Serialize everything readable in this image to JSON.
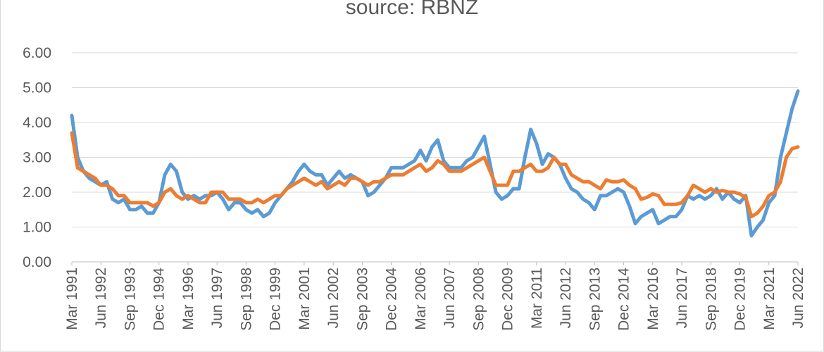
{
  "chart_data": {
    "type": "line",
    "title": "source: RBNZ",
    "xlabel": "",
    "ylabel": "",
    "ylim": [
      0,
      6
    ],
    "y_ticks": [
      "0.00",
      "1.00",
      "2.00",
      "3.00",
      "4.00",
      "5.00",
      "6.00"
    ],
    "grid": true,
    "legend": "none",
    "x_tick_labels": [
      "Mar 1991",
      "Jun 1992",
      "Sep 1993",
      "Dec 1994",
      "Mar 1996",
      "Jun 1997",
      "Sep 1998",
      "Dec 1999",
      "Mar 2001",
      "Jun 2002",
      "Sep 2003",
      "Dec 2004",
      "Mar 2006",
      "Jun 2007",
      "Sep 2008",
      "Dec 2009",
      "Mar 2011",
      "Jun 2012",
      "Sep 2013",
      "Dec 2014",
      "Mar 2016",
      "Jun 2017",
      "Sep 2018",
      "Dec 2019",
      "Mar 2021",
      "Jun 2022"
    ],
    "n_points": 126,
    "series": [
      {
        "color": "#5b9bd5",
        "keypoints": [
          [
            0,
            4.2
          ],
          [
            1,
            3.0
          ],
          [
            2,
            2.6
          ],
          [
            3,
            2.4
          ],
          [
            4,
            2.3
          ],
          [
            5,
            2.2
          ],
          [
            6,
            2.3
          ],
          [
            7,
            1.8
          ],
          [
            8,
            1.7
          ],
          [
            9,
            1.8
          ],
          [
            10,
            1.5
          ],
          [
            11,
            1.5
          ],
          [
            12,
            1.6
          ],
          [
            13,
            1.4
          ],
          [
            14,
            1.4
          ],
          [
            15,
            1.7
          ],
          [
            16,
            2.5
          ],
          [
            17,
            2.8
          ],
          [
            18,
            2.6
          ],
          [
            19,
            2.0
          ],
          [
            20,
            1.8
          ],
          [
            21,
            1.9
          ],
          [
            22,
            1.8
          ],
          [
            23,
            1.9
          ],
          [
            24,
            1.9
          ],
          [
            25,
            2.0
          ],
          [
            26,
            1.8
          ],
          [
            27,
            1.5
          ],
          [
            28,
            1.7
          ],
          [
            29,
            1.7
          ],
          [
            30,
            1.5
          ],
          [
            31,
            1.4
          ],
          [
            32,
            1.5
          ],
          [
            33,
            1.3
          ],
          [
            34,
            1.4
          ],
          [
            35,
            1.7
          ],
          [
            36,
            1.9
          ],
          [
            37,
            2.1
          ],
          [
            38,
            2.3
          ],
          [
            39,
            2.6
          ],
          [
            40,
            2.8
          ],
          [
            41,
            2.6
          ],
          [
            42,
            2.5
          ],
          [
            43,
            2.5
          ],
          [
            44,
            2.2
          ],
          [
            45,
            2.4
          ],
          [
            46,
            2.6
          ],
          [
            47,
            2.4
          ],
          [
            48,
            2.5
          ],
          [
            49,
            2.4
          ],
          [
            50,
            2.3
          ],
          [
            51,
            1.9
          ],
          [
            52,
            2.0
          ],
          [
            53,
            2.2
          ],
          [
            54,
            2.4
          ],
          [
            55,
            2.7
          ],
          [
            56,
            2.7
          ],
          [
            57,
            2.7
          ],
          [
            58,
            2.8
          ],
          [
            59,
            2.9
          ],
          [
            60,
            3.2
          ],
          [
            61,
            2.9
          ],
          [
            62,
            3.3
          ],
          [
            63,
            3.5
          ],
          [
            64,
            2.9
          ],
          [
            65,
            2.7
          ],
          [
            66,
            2.7
          ],
          [
            67,
            2.7
          ],
          [
            68,
            2.9
          ],
          [
            69,
            3.0
          ],
          [
            70,
            3.3
          ],
          [
            71,
            3.6
          ],
          [
            72,
            2.8
          ],
          [
            73,
            2.0
          ],
          [
            74,
            1.8
          ],
          [
            75,
            1.9
          ],
          [
            76,
            2.1
          ],
          [
            77,
            2.1
          ],
          [
            78,
            3.0
          ],
          [
            79,
            3.8
          ],
          [
            80,
            3.4
          ],
          [
            81,
            2.8
          ],
          [
            82,
            3.1
          ],
          [
            83,
            3.0
          ],
          [
            84,
            2.8
          ],
          [
            85,
            2.4
          ],
          [
            86,
            2.1
          ],
          [
            87,
            2.0
          ],
          [
            88,
            1.8
          ],
          [
            89,
            1.7
          ],
          [
            90,
            1.5
          ],
          [
            91,
            1.9
          ],
          [
            92,
            1.9
          ],
          [
            93,
            2.0
          ],
          [
            94,
            2.1
          ],
          [
            95,
            2.0
          ],
          [
            96,
            1.6
          ],
          [
            97,
            1.1
          ],
          [
            98,
            1.3
          ],
          [
            99,
            1.4
          ],
          [
            100,
            1.5
          ],
          [
            101,
            1.1
          ],
          [
            102,
            1.2
          ],
          [
            103,
            1.3
          ],
          [
            104,
            1.3
          ],
          [
            105,
            1.5
          ],
          [
            106,
            1.9
          ],
          [
            107,
            1.8
          ],
          [
            108,
            1.9
          ],
          [
            109,
            1.8
          ],
          [
            110,
            1.9
          ],
          [
            111,
            2.1
          ],
          [
            112,
            1.8
          ],
          [
            113,
            2.0
          ],
          [
            114,
            1.8
          ],
          [
            115,
            1.7
          ],
          [
            116,
            1.9
          ],
          [
            117,
            0.75
          ],
          [
            118,
            1.0
          ],
          [
            119,
            1.2
          ],
          [
            120,
            1.7
          ],
          [
            121,
            1.9
          ],
          [
            122,
            3.0
          ],
          [
            123,
            3.7
          ],
          [
            124,
            4.4
          ],
          [
            125,
            4.9
          ]
        ]
      },
      {
        "color": "#ed7d31",
        "keypoints": [
          [
            0,
            3.7
          ],
          [
            1,
            2.7
          ],
          [
            2,
            2.6
          ],
          [
            3,
            2.5
          ],
          [
            4,
            2.4
          ],
          [
            5,
            2.2
          ],
          [
            6,
            2.2
          ],
          [
            7,
            2.1
          ],
          [
            8,
            1.9
          ],
          [
            9,
            1.9
          ],
          [
            10,
            1.7
          ],
          [
            11,
            1.7
          ],
          [
            12,
            1.7
          ],
          [
            13,
            1.7
          ],
          [
            14,
            1.6
          ],
          [
            15,
            1.7
          ],
          [
            16,
            2.0
          ],
          [
            17,
            2.1
          ],
          [
            18,
            1.9
          ],
          [
            19,
            1.8
          ],
          [
            20,
            1.9
          ],
          [
            21,
            1.8
          ],
          [
            22,
            1.7
          ],
          [
            23,
            1.7
          ],
          [
            24,
            2.0
          ],
          [
            25,
            2.0
          ],
          [
            26,
            2.0
          ],
          [
            27,
            1.8
          ],
          [
            28,
            1.8
          ],
          [
            29,
            1.8
          ],
          [
            30,
            1.7
          ],
          [
            31,
            1.7
          ],
          [
            32,
            1.8
          ],
          [
            33,
            1.7
          ],
          [
            34,
            1.8
          ],
          [
            35,
            1.9
          ],
          [
            36,
            1.9
          ],
          [
            37,
            2.1
          ],
          [
            38,
            2.2
          ],
          [
            39,
            2.3
          ],
          [
            40,
            2.4
          ],
          [
            41,
            2.3
          ],
          [
            42,
            2.2
          ],
          [
            43,
            2.3
          ],
          [
            44,
            2.1
          ],
          [
            45,
            2.2
          ],
          [
            46,
            2.3
          ],
          [
            47,
            2.2
          ],
          [
            48,
            2.4
          ],
          [
            49,
            2.4
          ],
          [
            50,
            2.3
          ],
          [
            51,
            2.2
          ],
          [
            52,
            2.3
          ],
          [
            53,
            2.3
          ],
          [
            54,
            2.4
          ],
          [
            55,
            2.5
          ],
          [
            56,
            2.5
          ],
          [
            57,
            2.5
          ],
          [
            58,
            2.6
          ],
          [
            59,
            2.7
          ],
          [
            60,
            2.8
          ],
          [
            61,
            2.6
          ],
          [
            62,
            2.7
          ],
          [
            63,
            2.9
          ],
          [
            64,
            2.8
          ],
          [
            65,
            2.6
          ],
          [
            66,
            2.6
          ],
          [
            67,
            2.6
          ],
          [
            68,
            2.7
          ],
          [
            69,
            2.8
          ],
          [
            70,
            2.9
          ],
          [
            71,
            3.0
          ],
          [
            72,
            2.6
          ],
          [
            73,
            2.2
          ],
          [
            74,
            2.2
          ],
          [
            75,
            2.2
          ],
          [
            76,
            2.6
          ],
          [
            77,
            2.6
          ],
          [
            78,
            2.7
          ],
          [
            79,
            2.8
          ],
          [
            80,
            2.6
          ],
          [
            81,
            2.6
          ],
          [
            82,
            2.7
          ],
          [
            83,
            3.0
          ],
          [
            84,
            2.8
          ],
          [
            85,
            2.8
          ],
          [
            86,
            2.5
          ],
          [
            87,
            2.4
          ],
          [
            88,
            2.3
          ],
          [
            89,
            2.3
          ],
          [
            90,
            2.2
          ],
          [
            91,
            2.1
          ],
          [
            92,
            2.35
          ],
          [
            93,
            2.3
          ],
          [
            94,
            2.3
          ],
          [
            95,
            2.35
          ],
          [
            96,
            2.2
          ],
          [
            97,
            2.1
          ],
          [
            98,
            1.8
          ],
          [
            99,
            1.85
          ],
          [
            100,
            1.95
          ],
          [
            101,
            1.9
          ],
          [
            102,
            1.65
          ],
          [
            103,
            1.65
          ],
          [
            104,
            1.65
          ],
          [
            105,
            1.7
          ],
          [
            106,
            1.9
          ],
          [
            107,
            2.2
          ],
          [
            108,
            2.1
          ],
          [
            109,
            2.0
          ],
          [
            110,
            2.1
          ],
          [
            111,
            2.0
          ],
          [
            112,
            2.05
          ],
          [
            113,
            2.0
          ],
          [
            114,
            2.0
          ],
          [
            115,
            1.95
          ],
          [
            116,
            1.85
          ],
          [
            117,
            1.3
          ],
          [
            118,
            1.4
          ],
          [
            119,
            1.6
          ],
          [
            120,
            1.9
          ],
          [
            121,
            2.0
          ],
          [
            122,
            2.3
          ],
          [
            123,
            3.0
          ],
          [
            124,
            3.25
          ],
          [
            125,
            3.3
          ]
        ]
      }
    ]
  }
}
